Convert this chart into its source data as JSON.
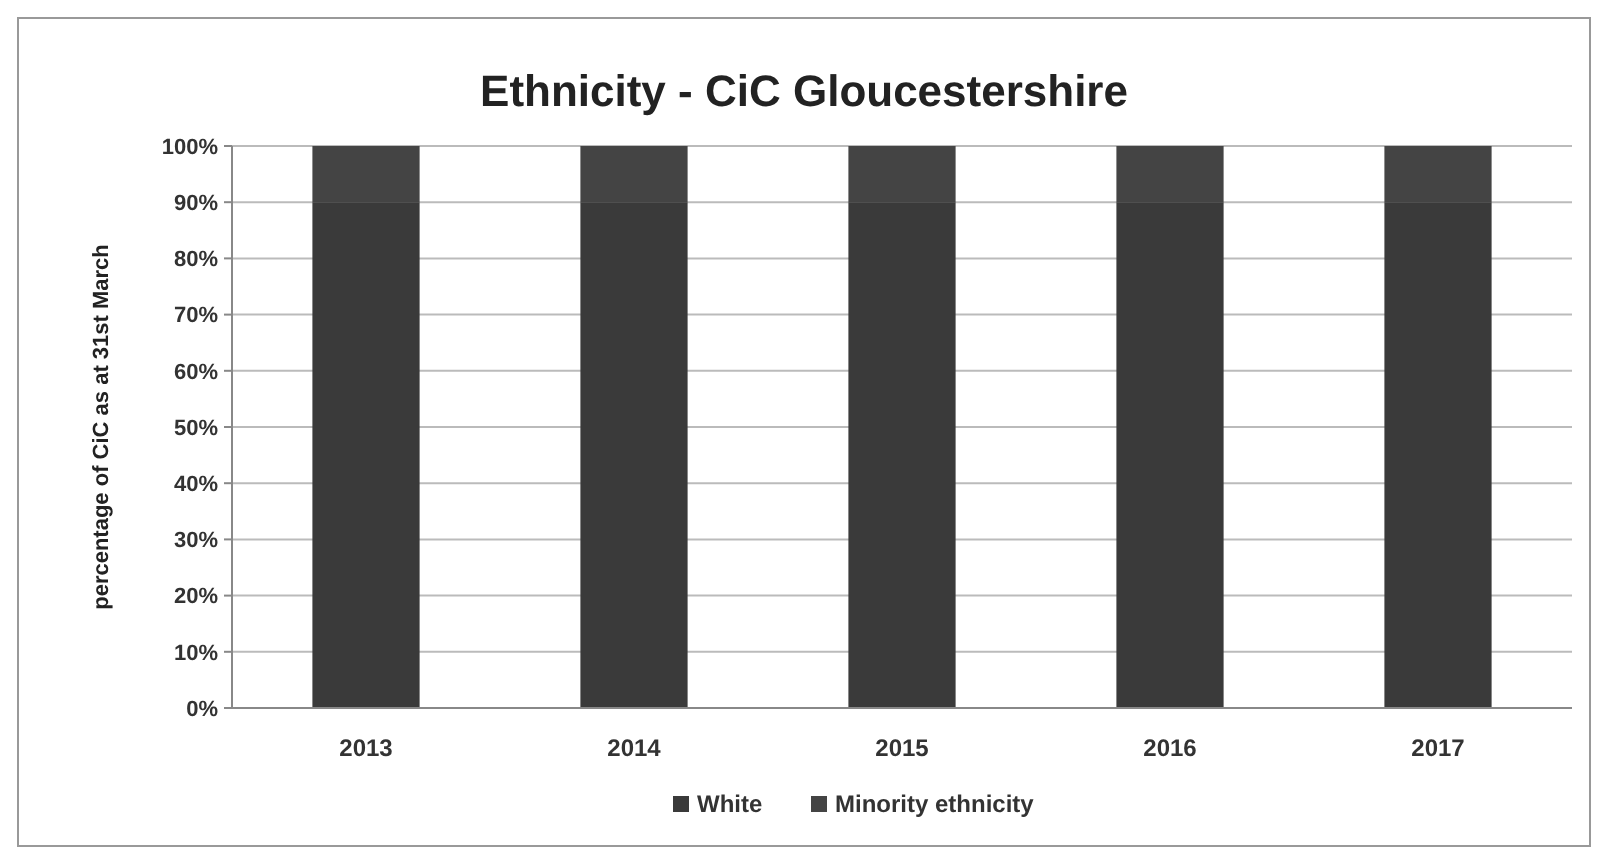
{
  "chart_data": {
    "type": "bar",
    "title": "Ethnicity - CiC Gloucestershire",
    "ylabel": "percentage of CiC as at 31st March",
    "categories": [
      "2013",
      "2014",
      "2015",
      "2016",
      "2017"
    ],
    "stacked": true,
    "series": [
      {
        "name": "White",
        "color": "#3a3a3a",
        "values": [
          90,
          90,
          90,
          90,
          90
        ]
      },
      {
        "name": "Minority ethnicity",
        "color": "#444444",
        "values": [
          10,
          10,
          10,
          10,
          10
        ]
      }
    ],
    "ylim": [
      0,
      100
    ],
    "yticks": [
      {
        "value": 0,
        "label": "0%"
      },
      {
        "value": 10,
        "label": "10%"
      },
      {
        "value": 20,
        "label": "20%"
      },
      {
        "value": 30,
        "label": "30%"
      },
      {
        "value": 40,
        "label": "40%"
      },
      {
        "value": 50,
        "label": "50%"
      },
      {
        "value": 60,
        "label": "60%"
      },
      {
        "value": 70,
        "label": "70%"
      },
      {
        "value": 80,
        "label": "80%"
      },
      {
        "value": 90,
        "label": "90%"
      },
      {
        "value": 100,
        "label": "100%"
      }
    ],
    "grid": "y",
    "legend": "bottom"
  }
}
